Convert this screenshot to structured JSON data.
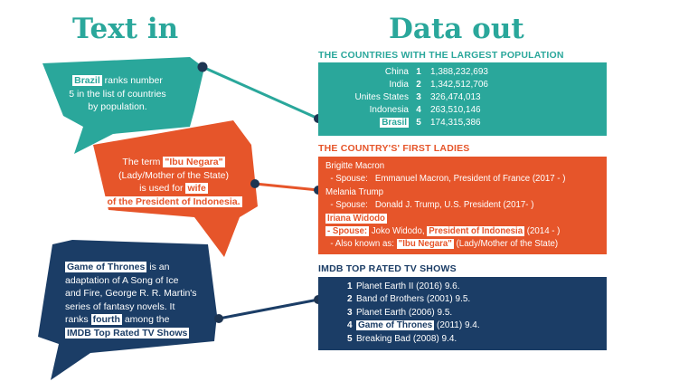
{
  "headings": {
    "text_in": "Text in",
    "data_out": "Data out"
  },
  "colors": {
    "teal": "#2aa79b",
    "orange": "#e6552a",
    "navy": "#1b3d66",
    "dot": "#1e3552"
  },
  "bubbles": {
    "brazil": {
      "highlight": "Brazil",
      "line1": " ranks number",
      "line2": "5 in the list of countries",
      "line3": "by population."
    },
    "ibu": {
      "line1a": "The term ",
      "line1_hl": "\"Ibu Negara\"",
      "line2": "(Lady/Mother of the State)",
      "line3a": "is used for ",
      "line3_hl": "wife",
      "line4_hl": "of the President of  Indonesia."
    },
    "got": {
      "line1_hl": "Game of Thrones",
      "line1b": " is an",
      "line2": "adaptation of A Song of Ice",
      "line3": "and Fire, George R. R. Martin's",
      "line4": "series of fantasy novels. It",
      "line5a": "ranks ",
      "line5_hl": "fourth",
      "line5b": " among the",
      "line6_hl": "IMDB Top Rated TV Shows"
    }
  },
  "sections": {
    "population": {
      "title": "THE COUNTRIES WITH THE LARGEST POPULATION",
      "rows": [
        {
          "country": "China",
          "rank": "1",
          "value": "1,388,232,693"
        },
        {
          "country": "India",
          "rank": "2",
          "value": "1,342,512,706"
        },
        {
          "country": "Unites States",
          "rank": "3",
          "value": "326,474,013"
        },
        {
          "country": "Indonesia",
          "rank": "4",
          "value": "263,510,146"
        },
        {
          "country": "Brasil",
          "rank": "5",
          "value": "174,315,386"
        }
      ]
    },
    "first_ladies": {
      "title": "THE COUNTRY'S' FIRST LADIES",
      "line1": "Brigitte Macron",
      "line2": "  - Spouse:   Emmanuel Macron, President of France (2017 - )",
      "line3": "Melania Trump",
      "line4": "  - Spouse:   Donald J. Trump, U.S. President (2017- )",
      "line5_hl": "Iriana Widodo",
      "line6_hl_a": "- Spouse:",
      "line6_b": " Joko Widodo, ",
      "line6_hl_c": "President of Indonesia",
      "line6_d": " (2014 - )",
      "line7_a": "  - Also known as: ",
      "line7_hl": "\"Ibu Negara\"",
      "line7_b": " (Lady/Mother of the State)"
    },
    "imdb": {
      "title": "IMDB TOP RATED TV SHOWS",
      "rows": [
        {
          "rank": "1",
          "show": "Planet Earth II (2016) 9.6."
        },
        {
          "rank": "2",
          "show": "Band of Brothers (2001) 9.5."
        },
        {
          "rank": "3",
          "show": "Planet Earth (2006) 9.5."
        },
        {
          "rank": "4",
          "show_hl": "Game of Thrones",
          "show_rest": " (2011) 9.4."
        },
        {
          "rank": "5",
          "show": "Breaking Bad (2008) 9.4."
        }
      ]
    }
  }
}
